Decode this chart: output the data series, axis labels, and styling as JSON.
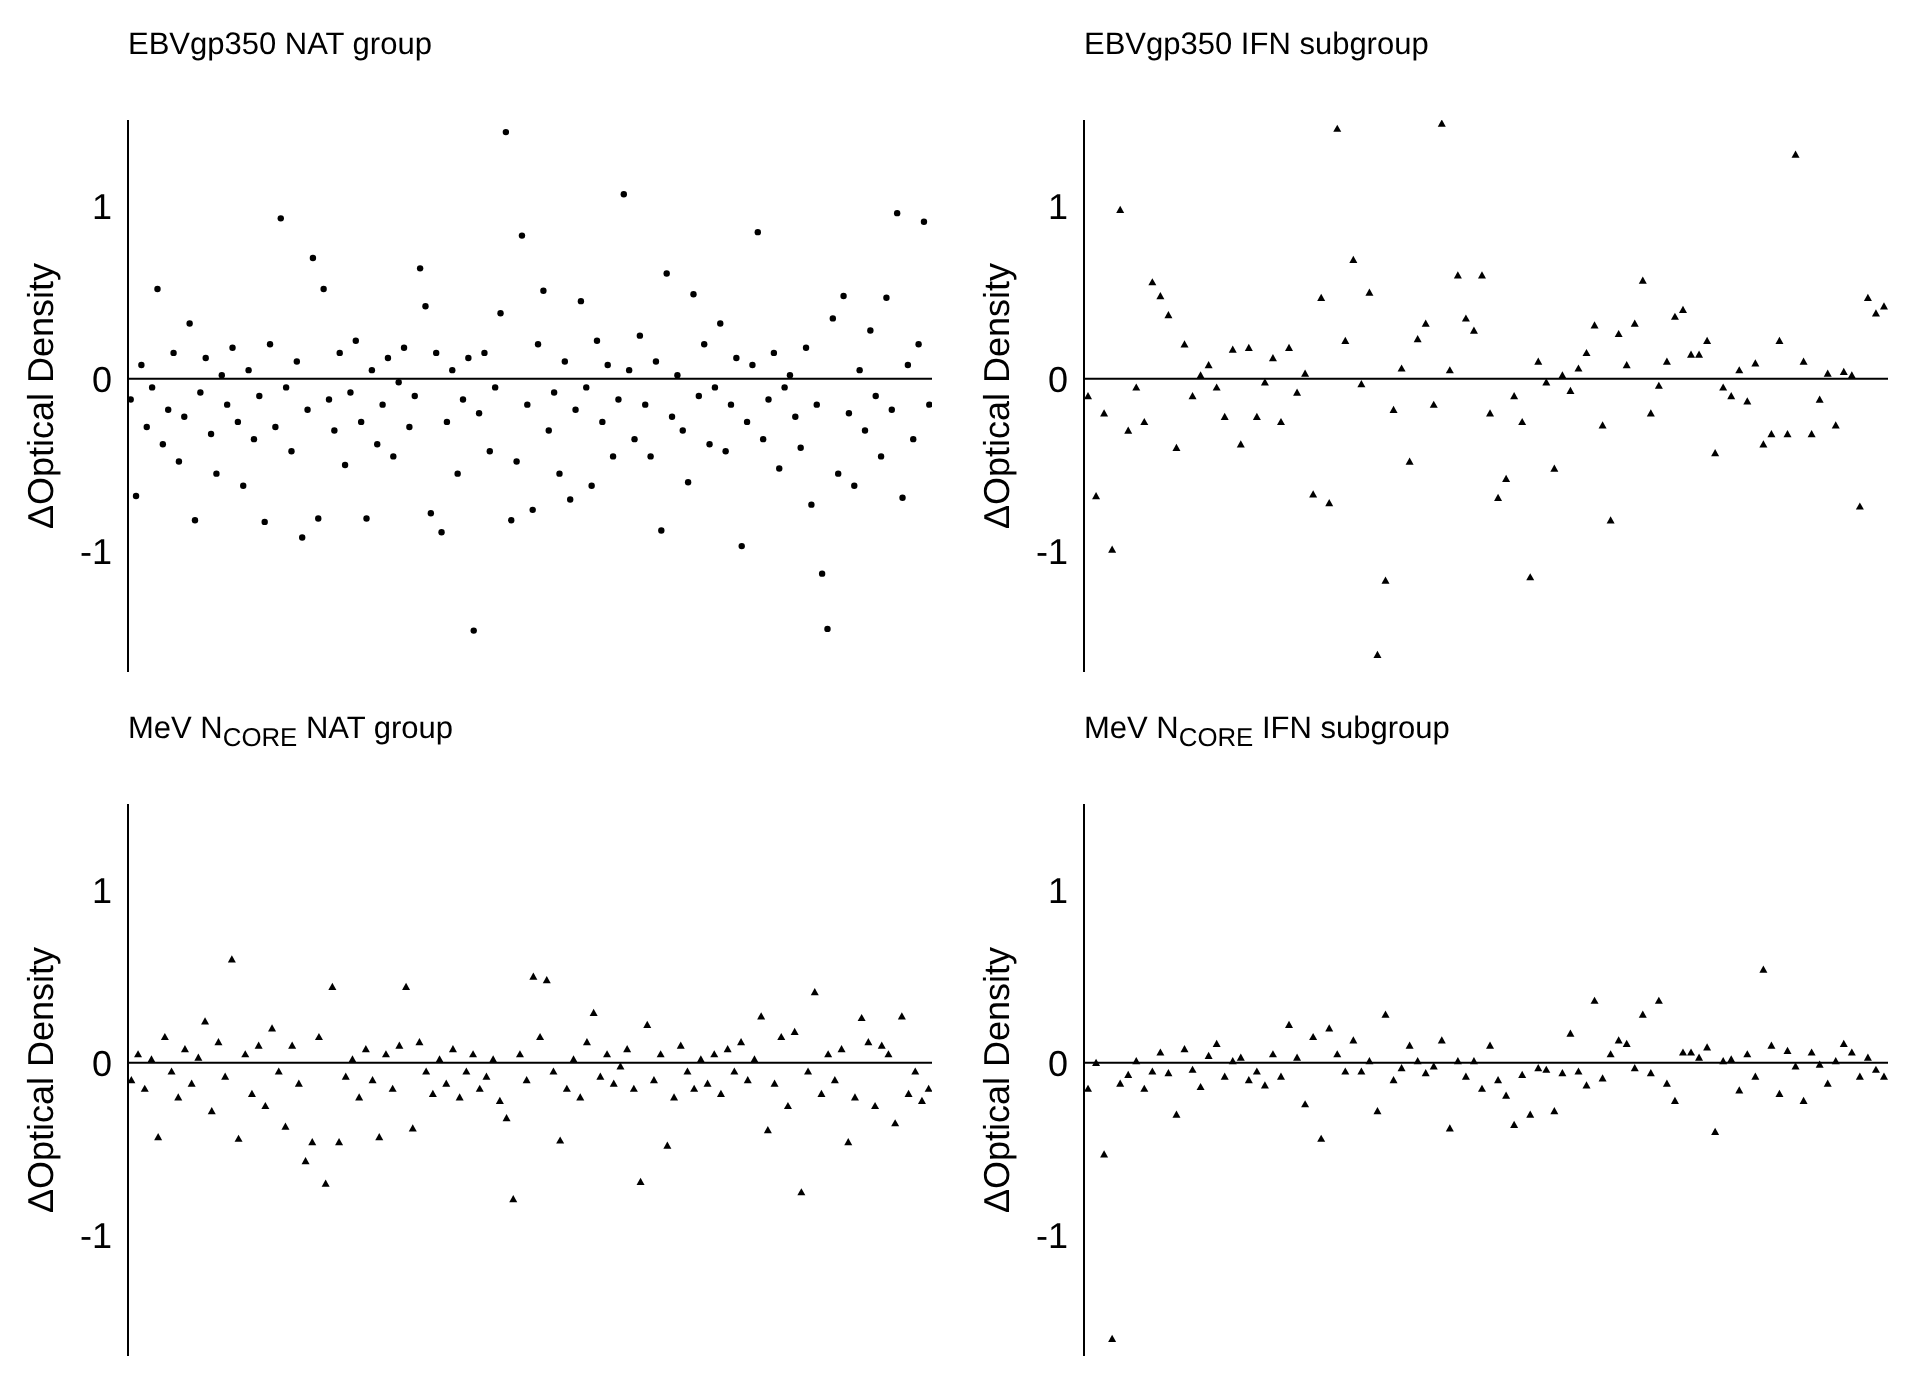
{
  "chart_data": [
    {
      "type": "scatter",
      "title": "EBVgp350 NAT group",
      "ylabel": "ΔOptical Density",
      "marker": "circle",
      "tick_labels": "y",
      "ylim": [
        -1.7,
        1.5
      ],
      "yticks": [
        -1,
        0,
        1
      ],
      "ref_lines": [
        {
          "axis": "y",
          "value": 0
        }
      ],
      "categories": [
        null,
        null,
        null,
        null,
        null,
        null,
        null,
        null,
        null,
        null,
        null,
        null,
        null,
        null,
        null,
        null,
        null,
        null,
        null,
        null,
        null,
        null,
        null,
        null,
        null,
        null,
        null,
        null,
        null,
        null,
        null,
        null,
        null,
        null,
        null,
        null,
        null,
        null,
        null,
        null,
        null,
        null,
        null,
        null,
        null,
        null,
        null,
        null,
        null,
        null,
        null,
        null,
        null,
        null,
        null,
        null,
        null,
        null,
        null,
        null,
        null,
        null,
        null,
        null,
        null,
        null,
        null,
        null,
        null,
        null,
        null,
        null,
        null,
        null,
        null,
        null,
        null,
        null,
        null,
        null,
        null,
        null,
        null,
        null,
        null,
        null,
        null,
        null,
        null,
        null,
        null,
        null,
        null,
        null,
        null,
        null,
        null,
        null,
        null,
        null,
        null,
        null,
        null,
        null,
        null,
        null,
        null,
        null,
        null,
        null,
        null,
        null,
        null,
        null,
        null,
        null,
        null,
        null,
        null,
        null,
        null,
        null,
        null,
        null,
        null,
        null,
        null,
        null,
        null,
        null,
        null,
        null,
        null,
        null,
        null,
        null,
        null,
        null,
        null,
        null,
        null,
        null,
        null,
        null,
        null,
        null,
        null,
        null,
        null,
        null
      ],
      "series": [
        {
          "color": "#000000",
          "values": [
            -0.12,
            -0.68,
            0.08,
            -0.28,
            -0.05,
            0.52,
            -0.38,
            -0.18,
            0.15,
            -0.48,
            -0.22,
            0.32,
            -0.82,
            -0.08,
            0.12,
            -0.32,
            -0.55,
            0.02,
            -0.15,
            0.18,
            -0.25,
            -0.62,
            0.05,
            -0.35,
            -0.1,
            -0.83,
            0.2,
            -0.28,
            0.93,
            -0.05,
            -0.42,
            0.1,
            -0.92,
            -0.18,
            0.7,
            -0.81,
            0.52,
            -0.12,
            -0.3,
            0.15,
            -0.5,
            -0.08,
            0.22,
            -0.25,
            -0.81,
            0.05,
            -0.38,
            -0.15,
            0.12,
            -0.45,
            -0.02,
            0.18,
            -0.28,
            -0.1,
            0.64,
            0.42,
            -0.78,
            0.15,
            -0.89,
            -0.25,
            0.05,
            -0.55,
            -0.12,
            0.12,
            -1.46,
            -0.2,
            0.15,
            -0.42,
            -0.05,
            0.38,
            1.43,
            -0.82,
            -0.48,
            0.83,
            -0.15,
            -0.76,
            0.2,
            0.51,
            -0.3,
            -0.08,
            -0.55,
            0.1,
            -0.7,
            -0.18,
            0.45,
            -0.05,
            -0.62,
            0.22,
            -0.25,
            0.08,
            -0.45,
            -0.12,
            1.07,
            0.05,
            -0.35,
            0.25,
            -0.15,
            -0.45,
            0.1,
            -0.88,
            0.61,
            -0.22,
            0.02,
            -0.3,
            -0.6,
            0.49,
            -0.1,
            0.2,
            -0.38,
            -0.05,
            0.32,
            -0.42,
            -0.15,
            0.12,
            -0.97,
            -0.25,
            0.08,
            0.85,
            -0.35,
            -0.12,
            0.15,
            -0.52,
            -0.05,
            0.02,
            -0.22,
            -0.4,
            0.18,
            -0.73,
            -0.15,
            -1.13,
            -1.45,
            0.35,
            -0.55,
            0.48,
            -0.2,
            -0.62,
            0.05,
            -0.3,
            0.28,
            -0.1,
            -0.45,
            0.47,
            -0.18,
            0.96,
            -0.69,
            0.08,
            -0.35,
            0.2,
            0.91,
            -0.15
          ]
        }
      ]
    },
    {
      "type": "scatter",
      "title": "EBVgp350 IFN subgroup",
      "ylabel": "ΔOptical Density",
      "marker": "triangle",
      "tick_labels": "y",
      "ylim": [
        -1.7,
        1.5
      ],
      "yticks": [
        -1,
        0,
        1
      ],
      "ref_lines": [
        {
          "axis": "y",
          "value": 0
        }
      ],
      "categories": [
        null,
        null,
        null,
        null,
        null,
        null,
        null,
        null,
        null,
        null,
        null,
        null,
        null,
        null,
        null,
        null,
        null,
        null,
        null,
        null,
        null,
        null,
        null,
        null,
        null,
        null,
        null,
        null,
        null,
        null,
        null,
        null,
        null,
        null,
        null,
        null,
        null,
        null,
        null,
        null,
        null,
        null,
        null,
        null,
        null,
        null,
        null,
        null,
        null,
        null,
        null,
        null,
        null,
        null,
        null,
        null,
        null,
        null,
        null,
        null,
        null,
        null,
        null,
        null,
        null,
        null,
        null,
        null,
        null,
        null,
        null,
        null,
        null,
        null,
        null,
        null,
        null,
        null,
        null,
        null,
        null,
        null,
        null,
        null,
        null,
        null,
        null,
        null,
        null,
        null,
        null,
        null,
        null,
        null,
        null,
        null,
        null,
        null,
        null,
        null
      ],
      "series": [
        {
          "color": "#000000",
          "values": [
            -0.1,
            -0.68,
            -0.2,
            -0.99,
            0.98,
            -0.3,
            -0.05,
            -0.25,
            0.56,
            0.48,
            0.37,
            -0.4,
            0.2,
            -0.1,
            0.02,
            0.08,
            -0.05,
            -0.22,
            0.17,
            -0.38,
            0.18,
            -0.22,
            -0.02,
            0.12,
            -0.25,
            0.18,
            -0.08,
            0.03,
            -0.67,
            0.47,
            -0.72,
            1.45,
            0.22,
            0.69,
            -0.03,
            0.5,
            -1.6,
            -1.17,
            -0.18,
            0.06,
            -0.48,
            0.23,
            0.32,
            -0.15,
            1.48,
            0.05,
            0.6,
            0.35,
            0.28,
            0.6,
            -0.2,
            -0.69,
            -0.58,
            -0.1,
            -0.25,
            -1.15,
            0.1,
            -0.02,
            -0.52,
            0.02,
            -0.07,
            0.06,
            0.15,
            0.31,
            -0.27,
            -0.82,
            0.26,
            0.08,
            0.32,
            0.57,
            -0.2,
            -0.04,
            0.1,
            0.36,
            0.4,
            0.14,
            0.14,
            0.22,
            -0.43,
            -0.05,
            -0.1,
            0.05,
            -0.13,
            0.09,
            -0.38,
            -0.32,
            0.22,
            -0.32,
            1.3,
            0.1,
            -0.32,
            -0.12,
            0.03,
            -0.27,
            0.04,
            0.02,
            -0.74,
            0.47,
            0.38,
            0.42
          ]
        }
      ]
    },
    {
      "type": "scatter",
      "title": "MeV N$_{CORE}$ NAT group",
      "ylabel": "ΔOptical Density",
      "marker": "triangle",
      "tick_labels": "y",
      "ylim": [
        -1.7,
        1.5
      ],
      "yticks": [
        -1,
        0,
        1
      ],
      "ref_lines": [
        {
          "axis": "y",
          "value": 0
        }
      ],
      "categories": [
        null,
        null,
        null,
        null,
        null,
        null,
        null,
        null,
        null,
        null,
        null,
        null,
        null,
        null,
        null,
        null,
        null,
        null,
        null,
        null,
        null,
        null,
        null,
        null,
        null,
        null,
        null,
        null,
        null,
        null,
        null,
        null,
        null,
        null,
        null,
        null,
        null,
        null,
        null,
        null,
        null,
        null,
        null,
        null,
        null,
        null,
        null,
        null,
        null,
        null,
        null,
        null,
        null,
        null,
        null,
        null,
        null,
        null,
        null,
        null,
        null,
        null,
        null,
        null,
        null,
        null,
        null,
        null,
        null,
        null,
        null,
        null,
        null,
        null,
        null,
        null,
        null,
        null,
        null,
        null,
        null,
        null,
        null,
        null,
        null,
        null,
        null,
        null,
        null,
        null,
        null,
        null,
        null,
        null,
        null,
        null,
        null,
        null,
        null,
        null,
        null,
        null,
        null,
        null,
        null,
        null,
        null,
        null,
        null,
        null,
        null,
        null,
        null,
        null,
        null,
        null,
        null,
        null,
        null,
        null
      ],
      "series": [
        {
          "color": "#000000",
          "values": [
            -0.1,
            0.05,
            -0.15,
            0.02,
            -0.43,
            0.15,
            -0.05,
            -0.2,
            0.08,
            -0.12,
            0.03,
            0.24,
            -0.28,
            0.12,
            -0.08,
            0.6,
            -0.44,
            0.05,
            -0.18,
            0.1,
            -0.25,
            0.2,
            -0.05,
            -0.37,
            0.1,
            -0.12,
            -0.57,
            -0.46,
            0.15,
            -0.7,
            0.44,
            -0.46,
            -0.08,
            0.02,
            -0.2,
            0.08,
            -0.1,
            -0.43,
            0.05,
            -0.15,
            0.1,
            0.44,
            -0.38,
            0.12,
            -0.05,
            -0.18,
            0.02,
            -0.12,
            0.08,
            -0.2,
            -0.05,
            0.05,
            -0.15,
            -0.08,
            0.02,
            -0.22,
            -0.32,
            -0.79,
            0.05,
            -0.1,
            0.5,
            0.15,
            0.48,
            -0.05,
            -0.45,
            -0.15,
            0.02,
            -0.2,
            0.12,
            0.29,
            -0.08,
            0.05,
            -0.12,
            -0.02,
            0.08,
            -0.15,
            -0.69,
            0.22,
            -0.1,
            0.05,
            -0.48,
            -0.2,
            0.1,
            -0.05,
            -0.15,
            0.02,
            -0.12,
            0.05,
            -0.18,
            0.08,
            -0.05,
            0.12,
            -0.1,
            0.02,
            0.27,
            -0.39,
            -0.12,
            0.15,
            -0.25,
            0.18,
            -0.75,
            -0.05,
            0.41,
            -0.18,
            0.05,
            -0.1,
            0.08,
            -0.46,
            -0.2,
            0.26,
            0.12,
            -0.25,
            0.1,
            0.05,
            -0.35,
            0.27,
            -0.18,
            -0.05,
            -0.22,
            -0.15
          ]
        }
      ]
    },
    {
      "type": "scatter",
      "title": "MeV N$_{CORE}$ IFN subgroup",
      "ylabel": "ΔOptical Density",
      "marker": "triangle",
      "tick_labels": "y",
      "ylim": [
        -1.7,
        1.5
      ],
      "yticks": [
        -1,
        0,
        1
      ],
      "ref_lines": [
        {
          "axis": "y",
          "value": 0
        }
      ],
      "categories": [
        null,
        null,
        null,
        null,
        null,
        null,
        null,
        null,
        null,
        null,
        null,
        null,
        null,
        null,
        null,
        null,
        null,
        null,
        null,
        null,
        null,
        null,
        null,
        null,
        null,
        null,
        null,
        null,
        null,
        null,
        null,
        null,
        null,
        null,
        null,
        null,
        null,
        null,
        null,
        null,
        null,
        null,
        null,
        null,
        null,
        null,
        null,
        null,
        null,
        null,
        null,
        null,
        null,
        null,
        null,
        null,
        null,
        null,
        null,
        null,
        null,
        null,
        null,
        null,
        null,
        null,
        null,
        null,
        null,
        null,
        null,
        null,
        null,
        null,
        null,
        null,
        null,
        null,
        null,
        null,
        null,
        null,
        null,
        null,
        null,
        null,
        null,
        null,
        null,
        null,
        null,
        null,
        null,
        null,
        null,
        null,
        null,
        null,
        null,
        null
      ],
      "series": [
        {
          "color": "#000000",
          "values": [
            -0.15,
            0,
            -0.53,
            -1.6,
            -0.12,
            -0.07,
            0.01,
            -0.15,
            -0.05,
            0.06,
            -0.06,
            -0.3,
            0.08,
            -0.04,
            -0.14,
            0.04,
            0.11,
            -0.08,
            0.01,
            0.03,
            -0.1,
            -0.05,
            -0.13,
            0.05,
            -0.08,
            0.22,
            0.03,
            -0.24,
            0.15,
            -0.44,
            0.2,
            0.05,
            -0.05,
            0.13,
            -0.05,
            0.01,
            -0.28,
            0.28,
            -0.1,
            -0.03,
            0.1,
            0.01,
            -0.06,
            -0.02,
            0.13,
            -0.38,
            0.01,
            -0.08,
            0.01,
            -0.15,
            0.1,
            -0.1,
            -0.19,
            -0.36,
            -0.07,
            -0.3,
            -0.03,
            -0.04,
            -0.28,
            -0.06,
            0.17,
            -0.05,
            -0.13,
            0.36,
            -0.09,
            0.05,
            0.13,
            0.11,
            -0.03,
            0.28,
            -0.06,
            0.36,
            -0.12,
            -0.22,
            0.06,
            0.06,
            0.03,
            0.09,
            -0.4,
            0.01,
            0.02,
            -0.16,
            0.05,
            -0.08,
            0.54,
            0.1,
            -0.18,
            0.07,
            -0.02,
            -0.22,
            0.06,
            -0.01,
            -0.12,
            0.01,
            0.11,
            0.06,
            -0.08,
            0.03,
            -0.04,
            -0.08
          ]
        }
      ]
    }
  ]
}
